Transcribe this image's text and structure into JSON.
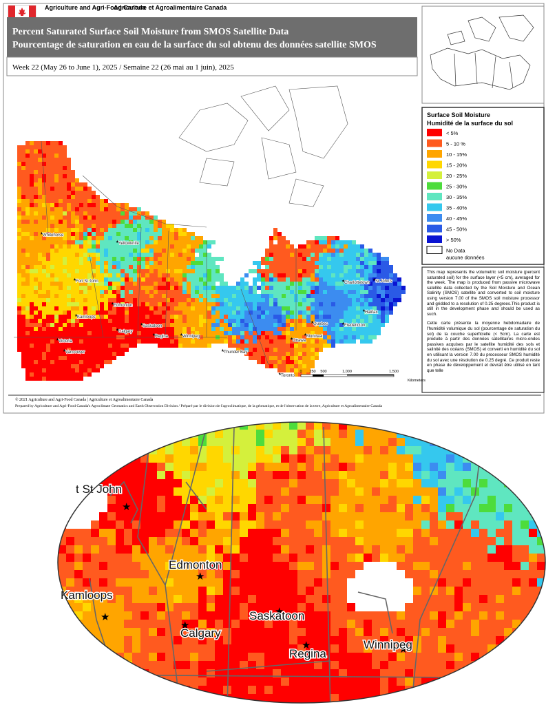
{
  "header": {
    "org_en": "Agriculture and Agri-Food Canada",
    "org_fr": "Agriculture et Agroalimentaire Canada",
    "title_en": "Percent Saturated Surface Soil Moisture from SMOS Satellite Data",
    "title_fr": "Pourcentage de saturation en eau de la surface du sol obtenu des données satellite SMOS",
    "week": "Week 22 (May 26  to June 1), 2025 / Semaine 22 (26 mai au 1 juin), 2025"
  },
  "legend": {
    "title_en": "Surface Soil Moisture",
    "title_fr": "Humidité de la surface du sol",
    "items": [
      {
        "label": "< 5%",
        "color": "#ff0000"
      },
      {
        "label": "5 - 10 %",
        "color": "#ff5a1f"
      },
      {
        "label": "10 - 15%",
        "color": "#ffa500"
      },
      {
        "label": "15 - 20%",
        "color": "#ffd700"
      },
      {
        "label": "20 - 25%",
        "color": "#d4f03c"
      },
      {
        "label": "25 - 30%",
        "color": "#4ddc3c"
      },
      {
        "label": "30 - 35%",
        "color": "#5fe6c0"
      },
      {
        "label": "35 - 40%",
        "color": "#35c8ee"
      },
      {
        "label": "40 - 45%",
        "color": "#3c8cf0"
      },
      {
        "label": "45 - 50%",
        "color": "#2a5ae6"
      },
      {
        "label": "> 50%",
        "color": "#0a14d2"
      },
      {
        "label": "No Data",
        "label2": "aucune données",
        "color": "#ffffff"
      }
    ]
  },
  "description": {
    "en": "This map represents the volumetric soil moisture (percent saturated soil) for the surface layer (<5 cm), averaged for the week. The map is produced from passive microwave satellite data collected by the Soil Moisture and Ocean Salinity (SMOS) satellite and converted to soil moisture using version 7.00 of the SMOS soil moisture processor and gridded to a resolution of 0.25 degrees.This product is still in the development phase and should be used as such.",
    "fr": "Cette carte présente la moyenne hebdomadaire de l'humidité volumique du sol (pourcentage de saturation du sol) de la couche superficielle (< 5cm). La carte est produite à partir des données satellitaires micro-ondes passives acquises par le satellite humidité des sols et salinité des océans (SMOS) et converti en humidité du sol en utilisant la version 7.00 du processeur SMOS humidité du sol avec une résolution de 0.25 degré. Ce produit reste en phase de développement et devrait être utilisé en tant que telle"
  },
  "scale_bar": {
    "ticks": [
      "0",
      "250",
      "500",
      "1,000",
      "1,500"
    ],
    "unit": "Kilometers"
  },
  "map_cities": [
    "Whitehorse",
    "Yellowknife",
    "Fort St John",
    "Edmonton",
    "Kamloops",
    "Calgary",
    "Saskatoon",
    "Regina",
    "Winnipeg",
    "Victoria",
    "Vancouver",
    "Thunder Bay",
    "Toronto",
    "Ottawa",
    "Montreal",
    "Quebec",
    "Fredericton",
    "Charlottetown",
    "Halifax",
    "St John's"
  ],
  "zoom_cities": [
    "t St John",
    "Edmonton",
    "Kamloops",
    "Calgary",
    "Saskatoon",
    "Regina",
    "Winnipeg"
  ],
  "footer": {
    "copyright": "© 2021 Agriculture and Agri-Food Canada | Agriculture et Agroalimentaire Canada",
    "prepared": "Prepared by Agriculture and Agri-Food Canada's Agroclimate Geomatics and Earth Observation Division / Préparé par le division de l'agroclimatique, de la géomatique, et de l'observation de la terre, Agriculture et Agroalimentaire Canada"
  }
}
